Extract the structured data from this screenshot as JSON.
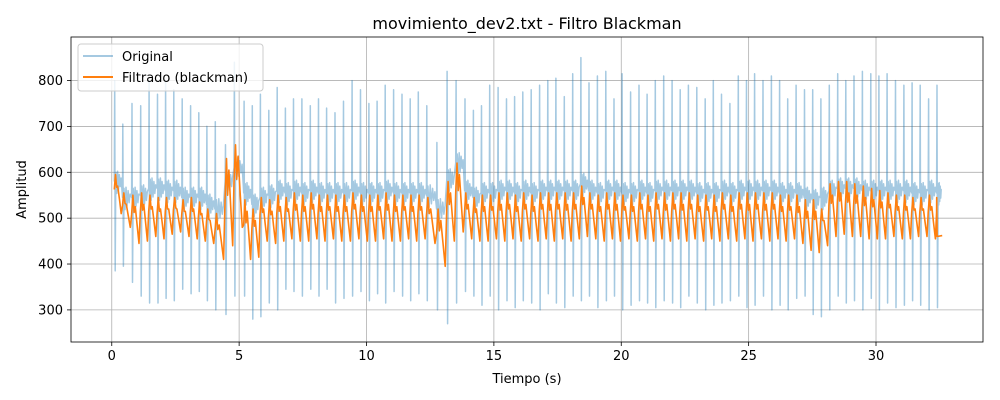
{
  "chart_data": {
    "type": "line",
    "title": "movimiento_dev2.txt - Filtro Blackman",
    "xlabel": "Tiempo (s)",
    "ylabel": "Amplitud",
    "xlim": [
      -1.6,
      34.2
    ],
    "ylim": [
      230,
      895
    ],
    "xticks": [
      0,
      5,
      10,
      15,
      20,
      25,
      30
    ],
    "yticks": [
      300,
      400,
      500,
      600,
      700,
      800
    ],
    "grid": true,
    "legend": "top-left",
    "x_start": 0,
    "x_end": 32.6,
    "series": [
      {
        "name": "Original",
        "color": "#1f77b4",
        "opacity": 0.4,
        "beat_times": [
          0.1,
          0.42,
          0.78,
          1.12,
          1.45,
          1.78,
          2.1,
          2.42,
          2.75,
          3.08,
          3.4,
          3.72,
          4.05,
          4.45,
          4.8,
          5.18,
          5.5,
          5.82,
          6.15,
          6.48,
          6.8,
          7.12,
          7.45,
          7.78,
          8.1,
          8.42,
          8.75,
          9.08,
          9.42,
          9.75,
          10.08,
          10.4,
          10.72,
          11.05,
          11.38,
          11.7,
          12.02,
          12.35,
          12.75,
          13.15,
          13.5,
          13.85,
          14.18,
          14.5,
          14.82,
          15.15,
          15.48,
          15.8,
          16.12,
          16.45,
          16.78,
          17.1,
          17.42,
          17.75,
          18.08,
          18.4,
          18.72,
          19.05,
          19.38,
          19.7,
          20.02,
          20.35,
          20.68,
          21.0,
          21.32,
          21.65,
          21.98,
          22.3,
          22.62,
          22.95,
          23.28,
          23.6,
          23.92,
          24.25,
          24.58,
          24.9,
          25.22,
          25.55,
          25.88,
          26.2,
          26.52,
          26.85,
          27.18,
          27.5,
          27.82,
          28.15,
          28.48,
          28.8,
          29.12,
          29.45,
          29.78,
          30.1,
          30.42,
          30.75,
          31.08,
          31.4,
          31.72,
          32.05,
          32.38
        ],
        "peak_values": [
          800,
          705,
          750,
          745,
          800,
          770,
          800,
          780,
          760,
          745,
          730,
          700,
          710,
          660,
          840,
          755,
          745,
          770,
          735,
          785,
          740,
          760,
          760,
          745,
          760,
          740,
          730,
          755,
          800,
          780,
          750,
          755,
          790,
          780,
          770,
          760,
          775,
          745,
          665,
          820,
          800,
          760,
          735,
          745,
          790,
          785,
          760,
          765,
          775,
          780,
          790,
          800,
          805,
          765,
          815,
          850,
          795,
          810,
          820,
          760,
          815,
          775,
          790,
          770,
          800,
          810,
          800,
          780,
          790,
          785,
          760,
          800,
          770,
          750,
          810,
          800,
          815,
          800,
          810,
          800,
          760,
          790,
          780,
          780,
          760,
          790,
          815,
          800,
          810,
          820,
          815,
          810,
          815,
          800,
          790,
          795,
          790,
          760,
          790
        ],
        "trough_values": [
          385,
          395,
          360,
          330,
          315,
          315,
          325,
          320,
          345,
          335,
          340,
          320,
          300,
          290,
          330,
          330,
          280,
          285,
          315,
          300,
          345,
          340,
          330,
          345,
          330,
          345,
          315,
          325,
          330,
          340,
          320,
          335,
          315,
          340,
          330,
          320,
          335,
          320,
          300,
          270,
          315,
          340,
          330,
          310,
          330,
          300,
          320,
          305,
          320,
          315,
          300,
          335,
          315,
          305,
          330,
          320,
          330,
          305,
          320,
          330,
          300,
          310,
          320,
          315,
          305,
          320,
          315,
          305,
          330,
          315,
          300,
          310,
          315,
          320,
          330,
          305,
          310,
          330,
          300,
          310,
          300,
          325,
          330,
          290,
          285,
          300,
          330,
          315,
          320,
          300,
          325,
          300,
          315,
          305,
          310,
          320,
          310,
          300,
          305
        ],
        "body_level": [
          580,
          545,
          545,
          550,
          565,
          565,
          560,
          560,
          545,
          545,
          545,
          530,
          520,
          580,
          610,
          555,
          530,
          545,
          550,
          560,
          555,
          560,
          555,
          560,
          555,
          555,
          555,
          555,
          560,
          555,
          555,
          555,
          560,
          555,
          555,
          555,
          555,
          550,
          520,
          585,
          620,
          560,
          545,
          555,
          555,
          560,
          560,
          555,
          560,
          555,
          560,
          560,
          560,
          560,
          560,
          575,
          560,
          555,
          560,
          560,
          555,
          555,
          560,
          555,
          560,
          560,
          560,
          560,
          560,
          555,
          555,
          555,
          560,
          555,
          560,
          560,
          560,
          560,
          560,
          555,
          555,
          555,
          545,
          540,
          545,
          560,
          565,
          565,
          565,
          560,
          560,
          560,
          560,
          560,
          560,
          555,
          555,
          560,
          555
        ]
      },
      {
        "name": "Filtrado (blackman)",
        "color": "#ff7f0e",
        "opacity": 1,
        "beat_times": [
          0.1,
          0.42,
          0.78,
          1.12,
          1.45,
          1.78,
          2.1,
          2.42,
          2.75,
          3.08,
          3.4,
          3.72,
          4.05,
          4.45,
          4.8,
          5.18,
          5.5,
          5.82,
          6.15,
          6.48,
          6.8,
          7.12,
          7.45,
          7.78,
          8.1,
          8.42,
          8.75,
          9.08,
          9.42,
          9.75,
          10.08,
          10.4,
          10.72,
          11.05,
          11.38,
          11.7,
          12.02,
          12.35,
          12.75,
          13.15,
          13.5,
          13.85,
          14.18,
          14.5,
          14.82,
          15.15,
          15.48,
          15.8,
          16.12,
          16.45,
          16.78,
          17.1,
          17.42,
          17.75,
          18.08,
          18.4,
          18.72,
          19.05,
          19.38,
          19.7,
          20.02,
          20.35,
          20.68,
          21.0,
          21.32,
          21.65,
          21.98,
          22.3,
          22.62,
          22.95,
          23.28,
          23.6,
          23.92,
          24.25,
          24.58,
          24.9,
          25.22,
          25.55,
          25.88,
          26.2,
          26.52,
          26.85,
          27.18,
          27.5,
          27.82,
          28.15,
          28.48,
          28.8,
          29.12,
          29.45,
          29.78,
          30.1,
          30.42,
          30.75,
          31.08,
          31.4,
          31.72,
          32.05,
          32.38
        ],
        "peak_values": [
          595,
          555,
          550,
          555,
          550,
          545,
          545,
          545,
          540,
          545,
          535,
          520,
          510,
          630,
          660,
          540,
          520,
          545,
          540,
          550,
          545,
          555,
          550,
          555,
          550,
          550,
          550,
          550,
          555,
          550,
          550,
          550,
          555,
          550,
          550,
          550,
          550,
          545,
          520,
          580,
          620,
          555,
          545,
          550,
          550,
          555,
          555,
          550,
          555,
          550,
          555,
          555,
          555,
          555,
          555,
          570,
          555,
          550,
          555,
          555,
          550,
          550,
          555,
          550,
          555,
          555,
          555,
          555,
          555,
          550,
          550,
          550,
          555,
          550,
          555,
          555,
          555,
          555,
          555,
          550,
          550,
          550,
          540,
          540,
          520,
          575,
          580,
          580,
          575,
          570,
          565,
          560,
          555,
          550,
          550,
          545,
          545,
          550,
          545
        ],
        "trough_values": [
          510,
          480,
          445,
          450,
          460,
          455,
          465,
          470,
          460,
          455,
          450,
          445,
          410,
          440,
          480,
          410,
          415,
          450,
          445,
          450,
          455,
          450,
          450,
          455,
          450,
          455,
          450,
          450,
          455,
          450,
          450,
          455,
          450,
          450,
          455,
          450,
          455,
          445,
          395,
          450,
          470,
          455,
          450,
          450,
          455,
          450,
          455,
          450,
          455,
          450,
          455,
          450,
          455,
          450,
          455,
          460,
          455,
          450,
          455,
          450,
          455,
          450,
          455,
          450,
          455,
          450,
          455,
          450,
          455,
          450,
          455,
          450,
          455,
          450,
          455,
          450,
          455,
          450,
          455,
          450,
          455,
          445,
          430,
          425,
          440,
          460,
          465,
          460,
          460,
          455,
          455,
          455,
          460,
          455,
          455,
          460,
          460,
          455,
          460
        ],
        "tail": [
          [
            32.4,
            460
          ],
          [
            32.6,
            462
          ]
        ]
      }
    ]
  }
}
